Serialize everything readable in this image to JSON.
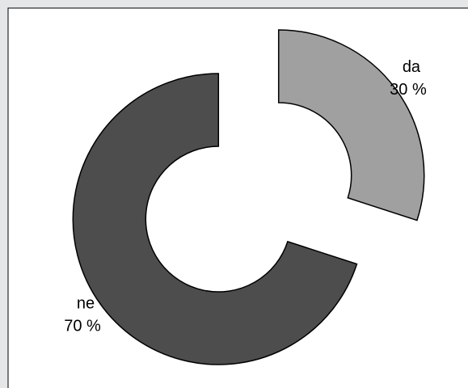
{
  "chart_data": {
    "type": "pie",
    "categories": [
      "da",
      "ne"
    ],
    "values": [
      30,
      70
    ],
    "value_labels": [
      "30 %",
      "70 %"
    ],
    "colors": [
      "#a0a0a0",
      "#4d4d4d"
    ]
  }
}
